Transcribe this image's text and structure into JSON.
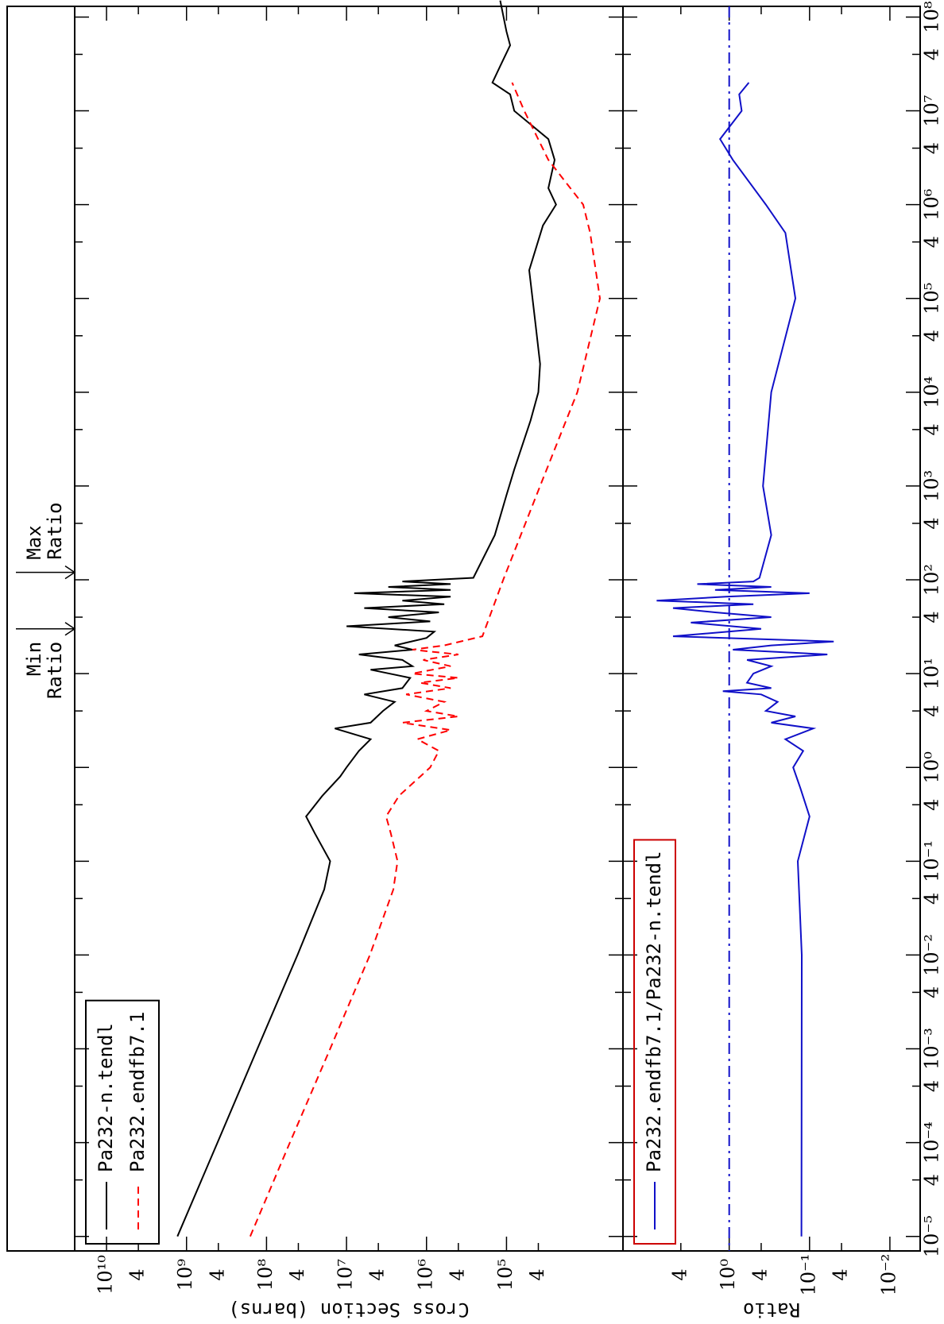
{
  "chart_data": [
    {
      "type": "line",
      "y_label": "Cross Section (barns)",
      "log_x": true,
      "log_y": true,
      "ylim": [
        3500,
        25000000000.0
      ],
      "yticks": [
        {
          "value": 40000,
          "label": "4"
        },
        {
          "value": 100000,
          "label": "10⁵"
        },
        {
          "value": 400000,
          "label": "4"
        },
        {
          "value": 1000000,
          "label": "10⁶"
        },
        {
          "value": 4000000,
          "label": "4"
        },
        {
          "value": 10000000,
          "label": "10⁷"
        },
        {
          "value": 40000000,
          "label": "4"
        },
        {
          "value": 100000000,
          "label": "10⁸"
        },
        {
          "value": 400000000,
          "label": "4"
        },
        {
          "value": 1000000000,
          "label": "10⁹"
        },
        {
          "value": 4000000000,
          "label": "4"
        },
        {
          "value": 10000000000,
          "label": "10¹⁰"
        }
      ],
      "legend": "upper left",
      "series": [
        {
          "name": "Pa232-n.tendl",
          "color": "#000000",
          "style": "solid",
          "x": [
            1e-05,
            0.0001,
            0.001,
            0.01,
            0.05,
            0.1,
            0.2,
            0.3,
            0.5,
            0.8,
            1,
            1.5,
            2,
            2.6,
            3,
            4,
            5,
            6,
            7,
            9,
            11,
            12,
            14,
            16,
            18,
            20,
            24,
            28,
            32,
            36,
            40,
            45,
            50,
            55,
            60,
            66,
            72,
            78,
            84,
            90,
            96,
            105,
            300,
            800,
            1500,
            5000,
            10000,
            20000,
            50000,
            200000,
            600000,
            1000000,
            1500000,
            3000000,
            5000000,
            10000000,
            15000000,
            20000000,
            30000000,
            50000000,
            70000000,
            150000000
          ],
          "values": [
            1300000000.0,
            410000000.0,
            130000000.0,
            41000000.0,
            19000000.0,
            16000000.0,
            25000000.0,
            32000000.0,
            20000000.0,
            12000000.0,
            10000000.0,
            7000000.0,
            5000000.0,
            14000000.0,
            5000000.0,
            3500000.0,
            2500000.0,
            6000000.0,
            2000000.0,
            1600000.0,
            5000000.0,
            1500000.0,
            2000000.0,
            7000000.0,
            1500000.0,
            2500000.0,
            1000000.0,
            800000.0,
            10000000.0,
            900000.0,
            3000000.0,
            700000.0,
            6000000.0,
            600000.0,
            2000000.0,
            500000.0,
            8000000.0,
            500000.0,
            3000000.0,
            500000.0,
            2000000.0,
            260000.0,
            140000.0,
            100000.0,
            80000.0,
            50000.0,
            40000.0,
            38000.0,
            43000.0,
            52000.0,
            35000.0,
            24000.0,
            30000.0,
            25000.0,
            30000.0,
            80000.0,
            90000.0,
            150000.0,
            120000.0,
            90000.0,
            100000.0,
            120000.0
          ]
        },
        {
          "name": "Pa232.endfb7.1",
          "color": "#ff0000",
          "style": "dashed",
          "x": [
            1e-05,
            0.0001,
            0.001,
            0.01,
            0.05,
            0.1,
            0.2,
            0.3,
            0.5,
            0.8,
            1,
            1.5,
            2,
            2.5,
            3,
            3.5,
            4,
            5,
            6,
            7,
            8,
            9,
            10,
            12,
            14,
            16,
            18,
            20,
            25,
            100,
            1000,
            10000,
            100000,
            500000,
            1000000,
            3000000,
            10000000,
            20000000
          ],
          "values": [
            160000000.0,
            51000000.0,
            16000000.0,
            5100000.0,
            2600000.0,
            2300000.0,
            2800000.0,
            3200000.0,
            2200000.0,
            1200000.0,
            900000.0,
            700000.0,
            1300000.0,
            500000.0,
            2000000.0,
            400000.0,
            1000000.0,
            600000.0,
            1800000.0,
            500000.0,
            1200000.0,
            400000.0,
            1500000.0,
            500000.0,
            1100000.0,
            400000.0,
            1500000.0,
            600000.0,
            200000.0,
            110000.0,
            38000.0,
            13000.0,
            6800.0,
            9000.0,
            11000.0,
            30000.0,
            60000.0,
            85000.0
          ]
        }
      ]
    },
    {
      "type": "line",
      "y_label": "Ratio",
      "log_x": true,
      "log_y": true,
      "xlim": [
        7e-06,
        130000000.0
      ],
      "xticks": [
        {
          "value": 1e-05,
          "label": "10⁻⁵"
        },
        {
          "value": 4e-05,
          "label": "4"
        },
        {
          "value": 0.0001,
          "label": "10⁻⁴"
        },
        {
          "value": 0.0004,
          "label": "4"
        },
        {
          "value": 0.001,
          "label": "10⁻³"
        },
        {
          "value": 0.004,
          "label": "4"
        },
        {
          "value": 0.01,
          "label": "10⁻²"
        },
        {
          "value": 0.04,
          "label": "4"
        },
        {
          "value": 0.1,
          "label": "10⁻¹"
        },
        {
          "value": 0.4,
          "label": "4"
        },
        {
          "value": 1,
          "label": "10⁰"
        },
        {
          "value": 4,
          "label": "4"
        },
        {
          "value": 10,
          "label": "10¹"
        },
        {
          "value": 40,
          "label": "4"
        },
        {
          "value": 100,
          "label": "10²"
        },
        {
          "value": 400,
          "label": "4"
        },
        {
          "value": 1000,
          "label": "10³"
        },
        {
          "value": 4000,
          "label": "4"
        },
        {
          "value": 10000,
          "label": "10⁴"
        },
        {
          "value": 40000,
          "label": "4"
        },
        {
          "value": 100000,
          "label": "10⁵"
        },
        {
          "value": 400000,
          "label": "4"
        },
        {
          "value": 1000000,
          "label": "10⁶"
        },
        {
          "value": 4000000,
          "label": "4"
        },
        {
          "value": 10000000,
          "label": "10⁷"
        },
        {
          "value": 40000000,
          "label": "4"
        },
        {
          "value": 100000000,
          "label": "10⁸"
        }
      ],
      "ylim": [
        0.0042,
        21
      ],
      "yticks": [
        {
          "value": 0.01,
          "label": "10⁻²"
        },
        {
          "value": 0.04,
          "label": "4"
        },
        {
          "value": 0.1,
          "label": "10⁻¹"
        },
        {
          "value": 0.4,
          "label": "4"
        },
        {
          "value": 1,
          "label": "10⁰"
        },
        {
          "value": 4,
          "label": "4"
        }
      ],
      "legend": "upper left",
      "legend_border": "#cc0000",
      "reference_line": {
        "value": 1,
        "color": "#1010c8",
        "style": "dashdot"
      },
      "annotations": [
        {
          "lines": [
            "Min",
            "Ratio"
          ],
          "x": 30
        },
        {
          "lines": [
            "Max",
            "Ratio"
          ],
          "x": 120
        }
      ],
      "series": [
        {
          "name": "Pa232.endfb7.1/Pa232-n.tendl",
          "color": "#1010c8",
          "style": "solid",
          "x": [
            1e-05,
            0.01,
            0.1,
            0.3,
            0.6,
            1,
            1.5,
            2,
            2.6,
            3,
            3.5,
            4,
            5,
            6,
            6.5,
            7,
            8,
            10,
            12,
            14,
            16,
            18,
            20,
            22,
            25,
            30,
            35,
            40,
            45,
            50,
            55,
            60,
            66,
            72,
            78,
            84,
            90,
            96,
            105,
            300,
            1000,
            10000,
            100000,
            500000,
            1000000,
            3000000,
            5000000,
            10000000,
            15000000,
            20000000
          ],
          "values": [
            0.126,
            0.125,
            0.14,
            0.1,
            0.13,
            0.16,
            0.12,
            0.2,
            0.09,
            0.3,
            0.15,
            0.35,
            0.25,
            0.4,
            1.2,
            0.3,
            0.6,
            0.5,
            0.3,
            0.6,
            0.06,
            0.9,
            0.3,
            0.05,
            5,
            0.4,
            3,
            0.3,
            1.5,
            5,
            0.5,
            8,
            1.1,
            0.1,
            1.5,
            0.3,
            2.5,
            0.5,
            0.42,
            0.3,
            0.38,
            0.3,
            0.15,
            0.2,
            0.35,
            0.9,
            1.3,
            0.7,
            0.75,
            0.57
          ]
        }
      ]
    }
  ]
}
